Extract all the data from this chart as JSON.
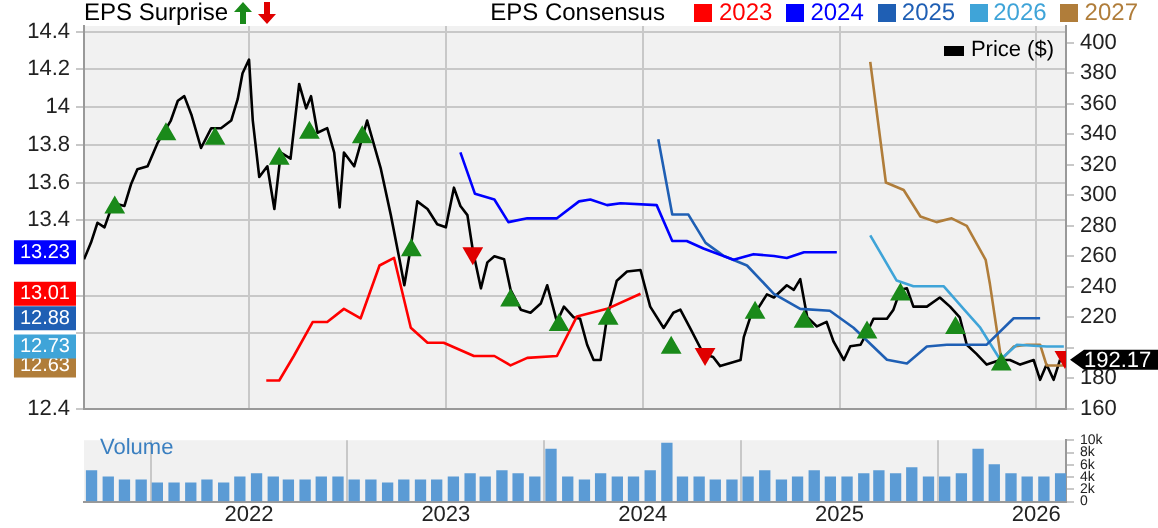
{
  "chart_data": [
    {
      "type": "line",
      "legend_title": "EPS Consensus",
      "annotations": [
        "EPS Surprise"
      ],
      "legend": "top right",
      "grid": true,
      "tick_labels": "y",
      "xlim": [
        "2021-03-01",
        "2026-02-25"
      ],
      "xticks": [
        "2022",
        "2023",
        "2024",
        "2025",
        "2026"
      ],
      "ylim": [
        12.4,
        14.43
      ],
      "yticks": [
        12.4,
        12.63,
        12.73,
        {
          "value": 12.8,
          "label": null
        },
        12.88,
        {
          "value": 13.0,
          "label": null
        },
        13.01,
        13.23,
        13.4,
        13.6,
        13.8,
        14,
        14.2,
        14.4
      ],
      "y2lim": [
        160,
        411
      ],
      "y2ticks": [
        160,
        180,
        {
          "value": 200,
          "label": null
        },
        220,
        240,
        260,
        280,
        300,
        320,
        340,
        360,
        380,
        400
      ],
      "series": [
        {
          "name": "2023",
          "color": "#ff0000",
          "x": [
            "2022-02-02",
            "2022-02-26",
            "2022-03-25",
            "2022-04-29",
            "2022-05-26",
            "2022-06-26",
            "2022-07-27",
            "2022-08-31",
            "2022-09-27",
            "2022-10-28",
            "2022-11-28",
            "2022-12-28",
            "2023-02-22",
            "2023-04-01",
            "2023-05-01",
            "2023-06-01",
            "2023-07-26",
            "2023-09-01",
            "2023-10-27",
            "2023-12-28"
          ],
          "values": [
            12.55,
            12.55,
            12.68,
            12.86,
            12.86,
            12.93,
            12.88,
            13.16,
            13.2,
            12.83,
            12.75,
            12.75,
            12.68,
            12.68,
            12.63,
            12.67,
            12.68,
            12.89,
            12.93,
            13.01
          ]
        },
        {
          "name": "2024",
          "color": "#0000ff",
          "x": [
            "2023-01-28",
            "2023-02-24",
            "2023-04-01",
            "2023-04-27",
            "2023-06-01",
            "2023-07-26",
            "2023-09-05",
            "2023-09-26",
            "2023-10-27",
            "2023-11-21",
            "2024-01-27",
            "2024-02-25",
            "2024-03-23",
            "2024-04-23",
            "2024-06-18",
            "2024-07-25",
            "2024-09-01",
            "2024-09-25",
            "2024-10-27",
            "2024-12-27"
          ],
          "values": [
            13.76,
            13.54,
            13.51,
            13.39,
            13.41,
            13.41,
            13.5,
            13.51,
            13.48,
            13.49,
            13.48,
            13.29,
            13.29,
            13.25,
            13.19,
            13.22,
            13.21,
            13.2,
            13.23,
            13.23
          ]
        },
        {
          "name": "2025",
          "color": "#1f5fb4",
          "x": [
            "2024-01-30",
            "2024-02-25",
            "2024-03-26",
            "2024-04-27",
            "2024-05-31",
            "2024-07-13",
            "2024-09-01",
            "2024-10-20",
            "2024-12-14",
            "2025-01-27",
            "2025-03-30",
            "2025-05-06",
            "2025-06-12",
            "2025-07-19",
            "2025-10-01",
            "2025-11-20",
            "2026-01-08"
          ],
          "values": [
            13.83,
            13.43,
            13.43,
            13.28,
            13.21,
            13.16,
            13.01,
            12.93,
            12.92,
            12.83,
            12.66,
            12.64,
            12.73,
            12.74,
            12.74,
            12.88,
            12.88
          ]
        },
        {
          "name": "2026",
          "color": "#3fa4d8",
          "x": [
            "2025-02-27",
            "2025-04-17",
            "2025-05-18",
            "2025-07-13",
            "2025-08-19",
            "2025-09-19",
            "2025-10-26",
            "2025-11-26",
            "2026-01-20",
            "2026-02-21"
          ],
          "values": [
            13.32,
            13.08,
            13.05,
            13.05,
            12.93,
            12.83,
            12.66,
            12.74,
            12.73,
            12.73
          ]
        },
        {
          "name": "2027",
          "color": "#b07d3a",
          "x": [
            "2025-02-27",
            "2025-03-28",
            "2025-04-30",
            "2025-05-31",
            "2025-06-30",
            "2025-07-28",
            "2025-08-25",
            "2025-09-29",
            "2025-10-07",
            "2025-10-28",
            "2025-11-20",
            "2025-12-14",
            "2026-01-08",
            "2026-01-20",
            "2026-02-21"
          ],
          "values": [
            14.24,
            13.6,
            13.56,
            13.42,
            13.39,
            13.41,
            13.37,
            13.19,
            13.06,
            12.66,
            12.73,
            12.74,
            12.74,
            12.63,
            12.63
          ]
        },
        {
          "name": "Price ($)",
          "color": "#000000",
          "axis": "y2",
          "x": [
            "2021-03-01",
            "2021-03-14",
            "2021-03-26",
            "2021-04-08",
            "2021-04-24",
            "2021-05-15",
            "2021-05-27",
            "2021-06-08",
            "2021-06-27",
            "2021-07-15",
            "2021-08-09",
            "2021-08-22",
            "2021-09-03",
            "2021-09-16",
            "2021-10-04",
            "2021-10-23",
            "2021-11-10",
            "2021-11-29",
            "2021-12-11",
            "2021-12-20",
            "2022-01-01",
            "2022-01-08",
            "2022-01-20",
            "2022-02-04",
            "2022-02-17",
            "2022-03-01",
            "2022-03-19",
            "2022-04-04",
            "2022-04-17",
            "2022-04-26",
            "2022-05-08",
            "2022-05-26",
            "2022-06-08",
            "2022-06-18",
            "2022-06-26",
            "2022-07-15",
            "2022-08-08",
            "2022-09-02",
            "2022-09-21",
            "2022-10-07",
            "2022-10-16",
            "2022-10-28",
            "2022-11-09",
            "2022-11-28",
            "2022-12-16",
            "2023-01-01",
            "2023-01-16",
            "2023-01-28",
            "2023-02-10",
            "2023-02-20",
            "2023-03-07",
            "2023-03-19",
            "2023-04-01",
            "2023-04-19",
            "2023-05-01",
            "2023-05-20",
            "2023-06-07",
            "2023-06-26",
            "2023-07-08",
            "2023-07-26",
            "2023-08-08",
            "2023-08-26",
            "2023-09-07",
            "2023-09-20",
            "2023-10-02",
            "2023-10-15",
            "2023-10-27",
            "2023-11-14",
            "2023-12-03",
            "2023-12-28",
            "2024-01-15",
            "2024-02-09",
            "2024-02-27",
            "2024-03-11",
            "2024-03-29",
            "2024-04-23",
            "2024-05-11",
            "2024-05-24",
            "2024-07-01",
            "2024-07-07",
            "2024-07-19",
            "2024-08-01",
            "2024-08-19",
            "2024-09-01",
            "2024-09-25",
            "2024-10-08",
            "2024-10-20",
            "2024-11-02",
            "2024-11-20",
            "2024-12-08",
            "2024-12-21",
            "2025-01-09",
            "2025-01-21",
            "2025-02-09",
            "2025-02-21",
            "2025-03-05",
            "2025-03-30",
            "2025-04-11",
            "2025-04-24",
            "2025-05-06",
            "2025-05-18",
            "2025-06-12",
            "2025-07-06",
            "2025-07-25",
            "2025-08-12",
            "2025-08-25",
            "2025-09-12",
            "2025-10-01",
            "2025-10-26",
            "2025-11-13",
            "2025-12-02",
            "2025-12-27",
            "2026-01-08",
            "2026-01-20",
            "2026-02-02",
            "2026-02-14"
          ],
          "values": [
            258,
            269,
            282,
            279,
            295,
            293,
            307,
            317,
            319,
            334,
            349,
            362,
            365,
            353,
            331,
            344,
            344,
            349,
            363,
            380,
            389,
            349,
            312,
            319,
            291,
            328,
            324,
            373,
            357,
            365,
            341,
            344,
            328,
            292,
            328,
            319,
            349,
            318,
            287,
            258,
            241,
            266,
            296,
            291,
            281,
            279,
            305,
            293,
            287,
            264,
            239,
            256,
            260,
            258,
            238,
            225,
            223,
            229,
            241,
            217,
            227,
            220,
            219,
            202,
            192,
            192,
            220,
            244,
            250,
            251,
            227,
            213,
            223,
            225,
            213,
            196,
            194,
            188,
            192,
            207,
            220,
            225,
            235,
            233,
            241,
            238,
            245,
            220,
            214,
            217,
            204,
            192,
            201,
            202,
            210,
            219,
            219,
            225,
            238,
            239,
            227,
            227,
            233,
            227,
            220,
            202,
            196,
            189,
            192,
            192,
            189,
            192,
            179,
            189,
            179,
            192.17
          ],
          "value_labels": [
            null,
            null,
            null,
            null,
            null,
            null,
            null,
            null,
            null,
            null,
            null,
            null,
            null,
            null,
            null,
            null,
            null,
            null,
            null,
            null,
            null,
            null,
            null,
            null,
            null,
            null,
            null,
            null,
            null,
            null,
            null,
            null,
            null,
            null,
            null,
            null,
            null,
            null,
            null,
            null,
            null,
            null,
            null,
            null,
            null,
            null,
            null,
            null,
            null,
            null,
            null,
            null,
            null,
            null,
            null,
            null,
            null,
            null,
            null,
            null,
            null,
            null,
            null,
            null,
            null,
            null,
            null,
            null,
            null,
            null,
            null,
            null,
            null,
            null,
            null,
            null,
            null,
            null,
            null,
            null,
            null,
            null,
            null,
            null,
            null,
            null,
            null,
            null,
            null,
            null,
            null,
            null,
            null,
            null,
            null,
            null,
            null,
            null,
            null,
            null,
            null,
            null,
            null,
            null,
            null,
            null,
            null,
            null,
            null,
            null,
            null,
            null,
            null,
            null,
            null,
            "192.17"
          ]
        },
        {
          "type": "scatter",
          "marker": "triangle",
          "color": "#1a8a1a",
          "axis": "y2",
          "x": [
            "2021-04-27",
            "2021-07-31",
            "2021-10-30",
            "2022-02-26",
            "2022-04-23",
            "2022-07-30",
            "2022-10-29",
            "2023-05-01",
            "2023-07-30",
            "2023-10-29",
            "2024-02-23",
            "2024-07-28",
            "2024-10-27",
            "2025-02-21",
            "2025-04-24",
            "2025-08-04",
            "2025-10-28"
          ],
          "values": [
            292,
            340,
            337,
            324,
            341,
            338,
            264,
            231,
            215,
            219,
            200,
            223,
            217,
            210,
            235,
            213,
            189
          ]
        },
        {
          "type": "scatter",
          "marker": "triangle_down",
          "color": "#e00000",
          "axis": "y2",
          "x": [
            "2023-02-20",
            "2024-04-26",
            "2026-02-23"
          ],
          "values": [
            262,
            196,
            194
          ]
        }
      ]
    },
    {
      "type": "bar",
      "title": "Volume",
      "color": "#5b9bd5",
      "grid": "x",
      "xlim": [
        "2021-03-01",
        "2026-02-25"
      ],
      "xticks": [
        "2022",
        "2023",
        "2024",
        "2025",
        "2026"
      ],
      "ylim": [
        0,
        10
      ],
      "yticks": [
        0,
        {
          "value": 2,
          "label": "2k"
        },
        {
          "value": 4,
          "label": "4k"
        },
        {
          "value": 6,
          "label": "6k"
        },
        {
          "value": 8,
          "label": "8k"
        },
        {
          "value": 10,
          "label": "10k"
        }
      ],
      "x": [
        "2021-03-15",
        "2021-04-15",
        "2021-05-15",
        "2021-06-15",
        "2021-07-15",
        "2021-08-15",
        "2021-09-15",
        "2021-10-15",
        "2021-11-15",
        "2021-12-15",
        "2022-01-15",
        "2022-02-15",
        "2022-03-15",
        "2022-04-15",
        "2022-05-15",
        "2022-06-15",
        "2022-07-15",
        "2022-08-15",
        "2022-09-15",
        "2022-10-15",
        "2022-11-15",
        "2022-12-15",
        "2023-01-15",
        "2023-02-15",
        "2023-03-15",
        "2023-04-15",
        "2023-05-15",
        "2023-06-15",
        "2023-07-15",
        "2023-08-15",
        "2023-09-15",
        "2023-10-15",
        "2023-11-15",
        "2023-12-15",
        "2024-01-15",
        "2024-02-15",
        "2024-03-15",
        "2024-04-15",
        "2024-05-15",
        "2024-06-15",
        "2024-07-15",
        "2024-08-15",
        "2024-09-15",
        "2024-10-15",
        "2024-11-15",
        "2024-12-15",
        "2025-01-15",
        "2025-02-15",
        "2025-03-15",
        "2025-04-15",
        "2025-05-15",
        "2025-06-15",
        "2025-07-15",
        "2025-08-15",
        "2025-09-15",
        "2025-10-15",
        "2025-11-15",
        "2025-12-15",
        "2026-01-15",
        "2026-02-15"
      ],
      "values": [
        5,
        4,
        3.5,
        3.5,
        3,
        3,
        3,
        3.5,
        3,
        4,
        4.5,
        4,
        3.5,
        3.5,
        4,
        4,
        3.5,
        3.5,
        3,
        3.5,
        3.5,
        3.5,
        4,
        4.5,
        4,
        5,
        4.5,
        4,
        8.5,
        4,
        3.5,
        4.5,
        4,
        4,
        5,
        9.5,
        4,
        4,
        3.5,
        3.5,
        4,
        5,
        3.5,
        4,
        5,
        4,
        4,
        4.5,
        5,
        4.5,
        5.5,
        4,
        4,
        4.5,
        8.5,
        6,
        4.5,
        4,
        4,
        4.5
      ]
    }
  ]
}
